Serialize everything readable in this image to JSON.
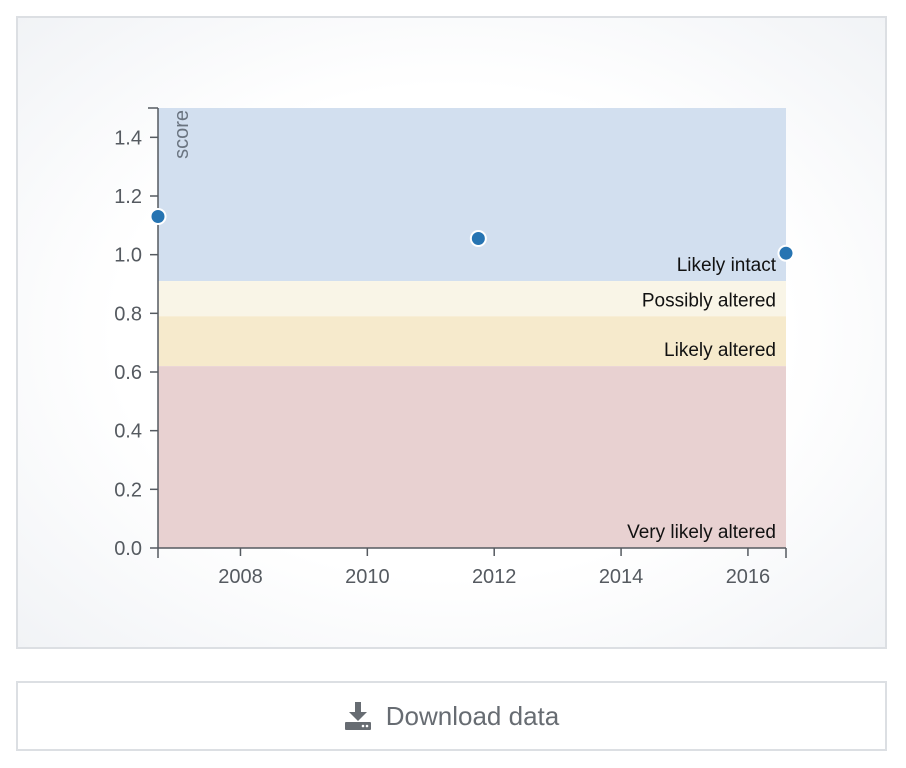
{
  "chart_data": {
    "type": "scatter",
    "title": "",
    "xlabel": "",
    "ylabel": "score",
    "xlim": [
      2006.7,
      2016.6
    ],
    "ylim": [
      0,
      1.5
    ],
    "x_ticks": [
      2008,
      2010,
      2012,
      2014,
      2016
    ],
    "y_ticks": [
      0.0,
      0.2,
      0.4,
      0.6,
      0.8,
      1.0,
      1.2,
      1.4
    ],
    "grid": false,
    "points": [
      {
        "x": 2006.7,
        "y": 1.13
      },
      {
        "x": 2011.75,
        "y": 1.055
      },
      {
        "x": 2016.6,
        "y": 1.005
      }
    ],
    "bands": [
      {
        "label": "Likely intact",
        "from": 0.91,
        "to": 1.5,
        "color": "#d2dfef"
      },
      {
        "label": "Possibly altered",
        "from": 0.79,
        "to": 0.91,
        "color": "#f9f5e7"
      },
      {
        "label": "Likely altered",
        "from": 0.62,
        "to": 0.79,
        "color": "#f6eacc"
      },
      {
        "label": "Very likely altered",
        "from": 0.0,
        "to": 0.62,
        "color": "#e8d1d1"
      }
    ],
    "point_color": "#2674b2"
  },
  "download": {
    "label": "Download data",
    "icon": "download-icon"
  }
}
